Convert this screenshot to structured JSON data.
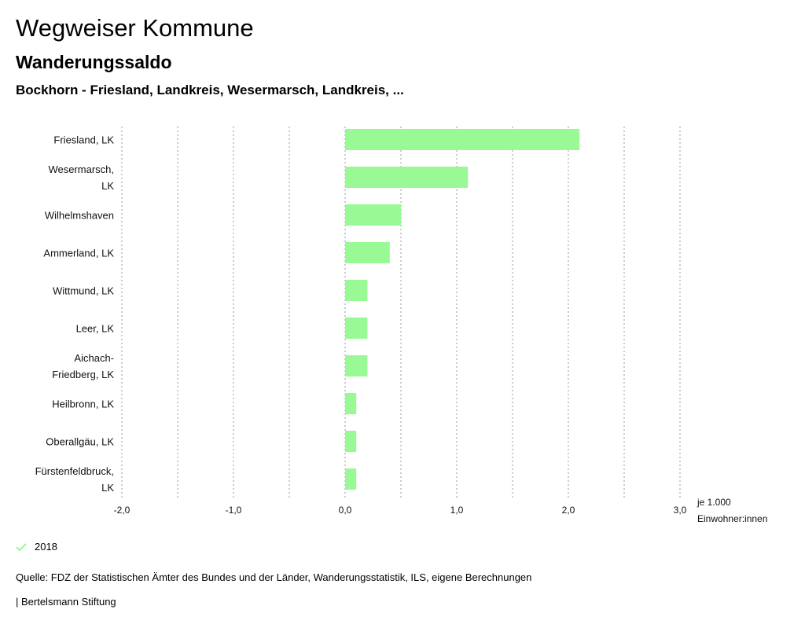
{
  "header": {
    "title": "Wegweiser Kommune",
    "subtitle": "Wanderungssaldo",
    "selection": "Bockhorn - Friesland, Landkreis, Wesermarsch, Landkreis, ..."
  },
  "chart_data": {
    "type": "bar",
    "orientation": "horizontal",
    "categories": [
      [
        "Friesland, LK"
      ],
      [
        "Wesermarsch,",
        "LK"
      ],
      [
        "Wilhelmshaven"
      ],
      [
        "Ammerland, LK"
      ],
      [
        "Wittmund, LK"
      ],
      [
        "Leer, LK"
      ],
      [
        "Aichach-",
        "Friedberg, LK"
      ],
      [
        "Heilbronn, LK"
      ],
      [
        "Oberallgäu, LK"
      ],
      [
        "Fürstenfeldbruck,",
        "LK"
      ]
    ],
    "series": [
      {
        "name": "2018",
        "values": [
          2.1,
          1.1,
          0.5,
          0.4,
          0.2,
          0.2,
          0.2,
          0.1,
          0.1,
          0.1
        ],
        "color": "#99f994"
      }
    ],
    "xlim": [
      -2.0,
      3.0
    ],
    "xticks": [
      -2.0,
      -1.0,
      0.0,
      1.0,
      2.0,
      3.0
    ],
    "xtick_labels": [
      "-2,0",
      "-1,0",
      "0,0",
      "1,0",
      "2,0",
      "3,0"
    ],
    "gridlines": [
      -2.0,
      -1.5,
      -1.0,
      -0.5,
      0.0,
      0.5,
      1.0,
      1.5,
      2.0,
      2.5,
      3.0
    ],
    "xlabel": [
      "je 1.000",
      "Einwohner:innen"
    ],
    "grid": true,
    "grid_style": "dotted"
  },
  "legend": {
    "label": "2018",
    "color": "#99f994",
    "icon": "check-icon"
  },
  "footer": {
    "source": "Quelle: FDZ der Statistischen Ämter des Bundes und der Länder, Wanderungsstatistik, ILS, eigene Berechnungen",
    "publisher": "| Bertelsmann Stiftung"
  }
}
